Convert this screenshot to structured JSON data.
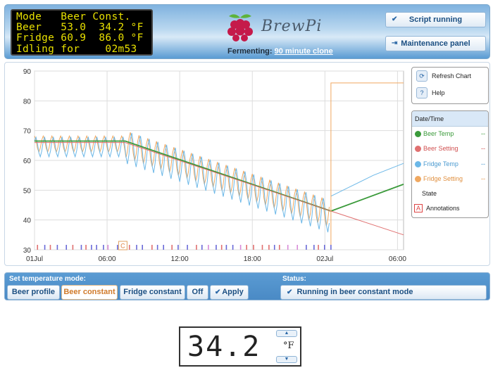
{
  "lcd": {
    "lines": [
      "Mode   Beer Const.",
      "Beer   53.0  34.2 °F",
      "Fridge 60.9  86.0 °F",
      "Idling for    02m53"
    ]
  },
  "header": {
    "logo_text": "BrewPi",
    "fermenting_label": "Fermenting:",
    "fermenting_value": "90 minute clone",
    "script_button": "Script running",
    "maintenance_button": "Maintenance panel"
  },
  "chart_tools": {
    "refresh_label": "Refresh Chart",
    "help_label": "Help"
  },
  "legend": {
    "header": "Date/Time",
    "items": [
      {
        "label": "Beer Temp",
        "color": "#3a9a3a",
        "value": "--"
      },
      {
        "label": "Beer Setting",
        "color": "#e07070",
        "value": "--"
      },
      {
        "label": "Fridge Temp",
        "color": "#6cb8e8",
        "value": "--"
      },
      {
        "label": "Fridge Setting",
        "color": "#f0a860",
        "value": "--"
      }
    ],
    "state_label": "State",
    "annotations_label": "Annotations",
    "annotations_icon": "A"
  },
  "chart_data": {
    "type": "line",
    "y_ticks": [
      "90",
      "80",
      "70",
      "60",
      "50",
      "40",
      "30"
    ],
    "x_ticks": [
      "01Jul",
      "06:00",
      "12:00",
      "18:00",
      "02Jul",
      "06:00"
    ],
    "ylim": [
      30,
      90
    ],
    "annotation_marker": "C",
    "series": [
      {
        "name": "Beer Temp",
        "color": "#3a9a3a",
        "points": [
          [
            0,
            66.5
          ],
          [
            7.5,
            66.5
          ],
          [
            24.5,
            43
          ],
          [
            30.5,
            52
          ]
        ]
      },
      {
        "name": "Beer Setting",
        "color": "#e07070",
        "points": [
          [
            0,
            66
          ],
          [
            7.5,
            66
          ],
          [
            24.5,
            43
          ],
          [
            30.5,
            35
          ]
        ]
      },
      {
        "name": "Fridge Temp",
        "color": "#6cb8e8",
        "points": [
          [
            24.5,
            48
          ],
          [
            26,
            51
          ],
          [
            28,
            55
          ],
          [
            30.5,
            59
          ]
        ]
      },
      {
        "name": "Fridge Setting",
        "color": "#f0a860",
        "points": [
          [
            24.5,
            30
          ],
          [
            24.5,
            86
          ],
          [
            30.5,
            86
          ]
        ]
      }
    ]
  },
  "controls": {
    "mode_label": "Set temperature mode:",
    "status_label": "Status:",
    "modes": [
      "Beer profile",
      "Beer constant",
      "Fridge constant",
      "Off",
      "Apply"
    ],
    "status_text": "Running in beer constant mode"
  },
  "temp_setting": {
    "value": "34.2",
    "unit": "°F"
  },
  "colors": {
    "header_blue": "#5a9bd3",
    "lcd_text": "#e8e000",
    "accent_orange": "#d07a2a"
  }
}
